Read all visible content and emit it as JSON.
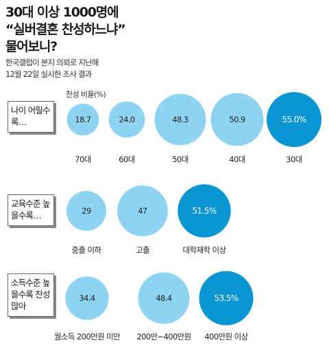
{
  "title_lines": [
    "30대 이상 1000명에",
    "“실버결혼 찬성하느냐”",
    "물어보니?"
  ],
  "subtitle_lines": [
    "한국갤럽이 본지 의뢰로 지난해",
    "12월 22일 실시한 조사 결과"
  ],
  "colors": {
    "light": "#8fd3f3",
    "highlight": "#0a95d3",
    "text_light": "#222222",
    "text_highlight": "#ffffff"
  },
  "chart_data": [
    {
      "type": "bubble",
      "group_label": "나이 어릴수록…",
      "unit_label": "찬성 비율(%)",
      "categories": [
        "70대",
        "60대",
        "50대",
        "40대",
        "30대"
      ],
      "values": [
        18.7,
        24.0,
        48.3,
        50.9,
        55.0
      ],
      "value_labels": [
        "18.7",
        "24.0",
        "48.3",
        "50.9",
        "55.0%"
      ],
      "highlight_index": 4
    },
    {
      "type": "bubble",
      "group_label": "교육수준 높을수록…",
      "categories": [
        "중졸 이하",
        "고졸",
        "대학재학 이상"
      ],
      "values": [
        29,
        47,
        51.5
      ],
      "value_labels": [
        "29",
        "47",
        "51.5%"
      ],
      "highlight_index": 2
    },
    {
      "type": "bubble",
      "group_label": "소득수준 높을수록 찬성 많아",
      "categories": [
        "월소득 200만원 미만",
        "200만~400만원",
        "400만원 이상"
      ],
      "values": [
        34.4,
        48.4,
        53.5
      ],
      "value_labels": [
        "34.4",
        "48.4",
        "53.5%"
      ],
      "highlight_index": 2
    }
  ]
}
